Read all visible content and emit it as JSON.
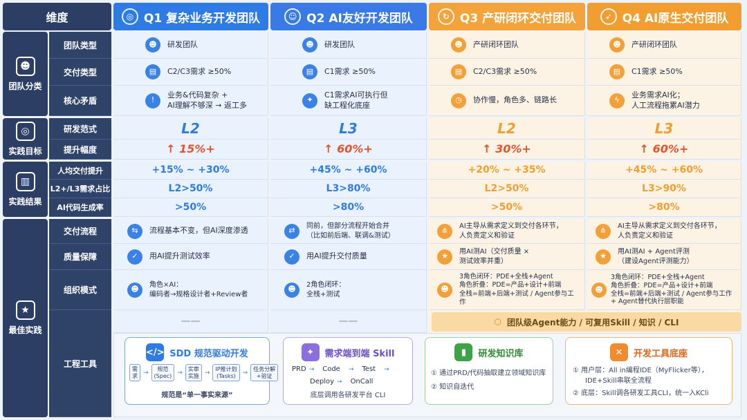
{
  "header": {
    "dim": "维度",
    "q1": "Q1 复杂业务开发团队",
    "q2": "Q2 AI友好开发团队",
    "q3": "Q3 产研闭环交付团队",
    "q4": "Q4 AI原生交付团队"
  },
  "categories": {
    "team": "团队分类",
    "goal": "实践目标",
    "result": "实践结果",
    "best": "最佳实践"
  },
  "dims": {
    "team_type": "团队类型",
    "delivery_type": "交付类型",
    "core_conflict": "核心矛盾",
    "paradigm": "研发范式",
    "uplift": "提升幅度",
    "per_capita": "人均交付提升",
    "l2l3": "L2+/L3需求占比",
    "ai_code": "AI代码生成率",
    "process": "交付流程",
    "quality": "质量保障",
    "org": "组织模式",
    "tools": "工程工具"
  },
  "team_type": {
    "q1": "研发团队",
    "q2": "研发团队",
    "q3": "产研闭环团队",
    "q4": "产研闭环团队"
  },
  "delivery_type": {
    "q1": "C2/C3需求 ≥50%",
    "q2": "C1需求 ≥50%",
    "q3": "C2/C3需求 ≥50%",
    "q4": "C1需求 ≥50%"
  },
  "core_conflict": {
    "q1a": "业务&代码复杂 +",
    "q1b": "AI理解不够深 → 返工多",
    "q2a": "C1需求AI可执行但",
    "q2b": "缺工程化底座",
    "q3": "协作慢，角色多、链路长",
    "q4a": "业务需求AI化；",
    "q4b": "人工流程拖累AI潜力"
  },
  "paradigm": {
    "q1": "L2",
    "q2": "L3",
    "q3": "L2",
    "q4": "L3"
  },
  "uplift": {
    "q1": "↑ 15%+",
    "q2": "↑ 60%+",
    "q3": "↑ 30%+",
    "q4": "↑ 60%+"
  },
  "per_capita": {
    "q1": "+15% ~ +30%",
    "q2": "+45% ~ +60%",
    "q3": "+20% ~ +35%",
    "q4": "+45% ~ +60%"
  },
  "l2l3": {
    "q1": "L2>50%",
    "q2": "L3>80%",
    "q3": "L2>50%",
    "q4": "L3>90%"
  },
  "ai_code": {
    "q1": ">50%",
    "q2": ">80%",
    "q3": ">50%",
    "q4": ">80%"
  },
  "process": {
    "q1": "流程基本不变，但AI深度渗透",
    "q2a": "同前，但部分流程开始合并",
    "q2b": "（比如前后端、联调&测试）",
    "q3a": "AI主导从需求定义到交付各环节，",
    "q3b": "人负责定义和验证",
    "q4a": "AI主导从需求定义到交付各环节，",
    "q4b": "人负责定义和验证"
  },
  "quality": {
    "q1": "用AI提升测试效率",
    "q2": "用AI提升交付质量",
    "q3a": "用AI测AI（交付质量 ×",
    "q3b": "测试效率并重）",
    "q4a": "用AI测AI + Agent评测",
    "q4b": "（建设Agent评测能力）"
  },
  "org": {
    "q1a": "角色×AI：",
    "q1b": "编码者→规格设计者+Review者",
    "q2a": "2角色闭环：",
    "q2b": "全栈+测试",
    "q3a": "3角色闭环：PDE+全栈+Agent",
    "q3b": "角色折叠：PDE=产品+设计+前端",
    "q3c": "全栈=前端+后端+测试 / Agent参与工作",
    "q4a": "3角色闭环：PDE+全栈+Agent",
    "q4b": "角色折叠：PDE=产品+设计+前端",
    "q4c": "全栈=前端+后端+测试 / Agent参与工作",
    "q4d": "+ Agent替代执行层职能"
  },
  "tools_row": {
    "q1": "——",
    "q2": "——",
    "banner": "团队级Agent能力 / 可复用Skill / 知识 / CLI"
  },
  "cards": {
    "sdd": {
      "title": "SDD 规范驱动开发",
      "steps": [
        "需求",
        "规范\n(Spec)",
        "实审\n实施",
        "IP推计划\n(Tasks)",
        "任务分解\n+验证"
      ],
      "foot": "规范是“单一事实来源”"
    },
    "skill": {
      "title": "需求端到端 Skill",
      "row1": [
        "PRD",
        "Code",
        "Test"
      ],
      "row2": [
        "Deploy",
        "OnCall"
      ],
      "foot": "底层调用各研发平台 CLI"
    },
    "kb": {
      "title": "研发知识库",
      "l1": "① 通过PRD/代码抽取建立领域知识库",
      "l2": "② 知识自迭代"
    },
    "dev": {
      "title": "开发工具底座",
      "l1": "① 用户层：All in编程IDE（MyFlicker等），",
      "l1b": "IDE+Skill串联全流程",
      "l2": "② 底层：Skill调各研发工具CLI，统一入KCli"
    }
  },
  "colors": {
    "navy": "#2c3e63",
    "blue": "#2f7be6",
    "orange": "#f29d2f"
  }
}
